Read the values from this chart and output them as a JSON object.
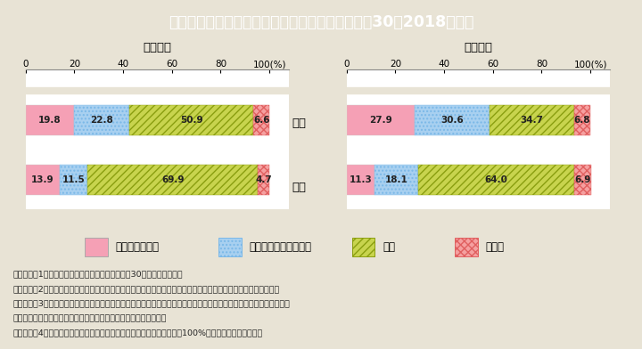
{
  "title": "図表２　工業科・家庭科における進路状況（平成30（2018）年）",
  "title_bg": "#2bbdd0",
  "title_color": "white",
  "bg_color": "#e8e3d5",
  "chart_bg": "#ffffff",
  "industry_label": "＜工業＞",
  "home_label": "＜家庭＞",
  "row_labels": [
    "女子",
    "男子"
  ],
  "industry_data": [
    [
      19.8,
      22.8,
      50.9,
      6.6
    ],
    [
      13.9,
      11.5,
      69.9,
      4.7
    ]
  ],
  "home_data": [
    [
      27.9,
      30.6,
      34.7,
      6.8
    ],
    [
      11.3,
      18.1,
      64.0,
      6.9
    ]
  ],
  "colors": [
    "#f5a0b5",
    "#a8d0f0",
    "#c8d44e",
    "#f5a0a0"
  ],
  "legend_labels": [
    "大学・短期大学",
    "専修学校（専門課程）",
    "就職",
    "その他"
  ],
  "note_lines": [
    "（備考）　1．文部科学省「学校基本統計」（平成30年度）より作成。",
    "　　　　　2．「その他」は，「専修学校（一般課程）等入学者」，「公共職業能力開発施設等入学者」等の人数。",
    "　　　　　3．「就職」には，大学等進学者，専修学校（専門課程）進学者，専修学校（一般課程）入学者，公共職業能",
    "　　　　　　　力開発施設等入学者のうち就職している者も含む。",
    "　　　　　4．割合については，小数点第二位を四捨五入しているため，100%とならないことがある。"
  ]
}
